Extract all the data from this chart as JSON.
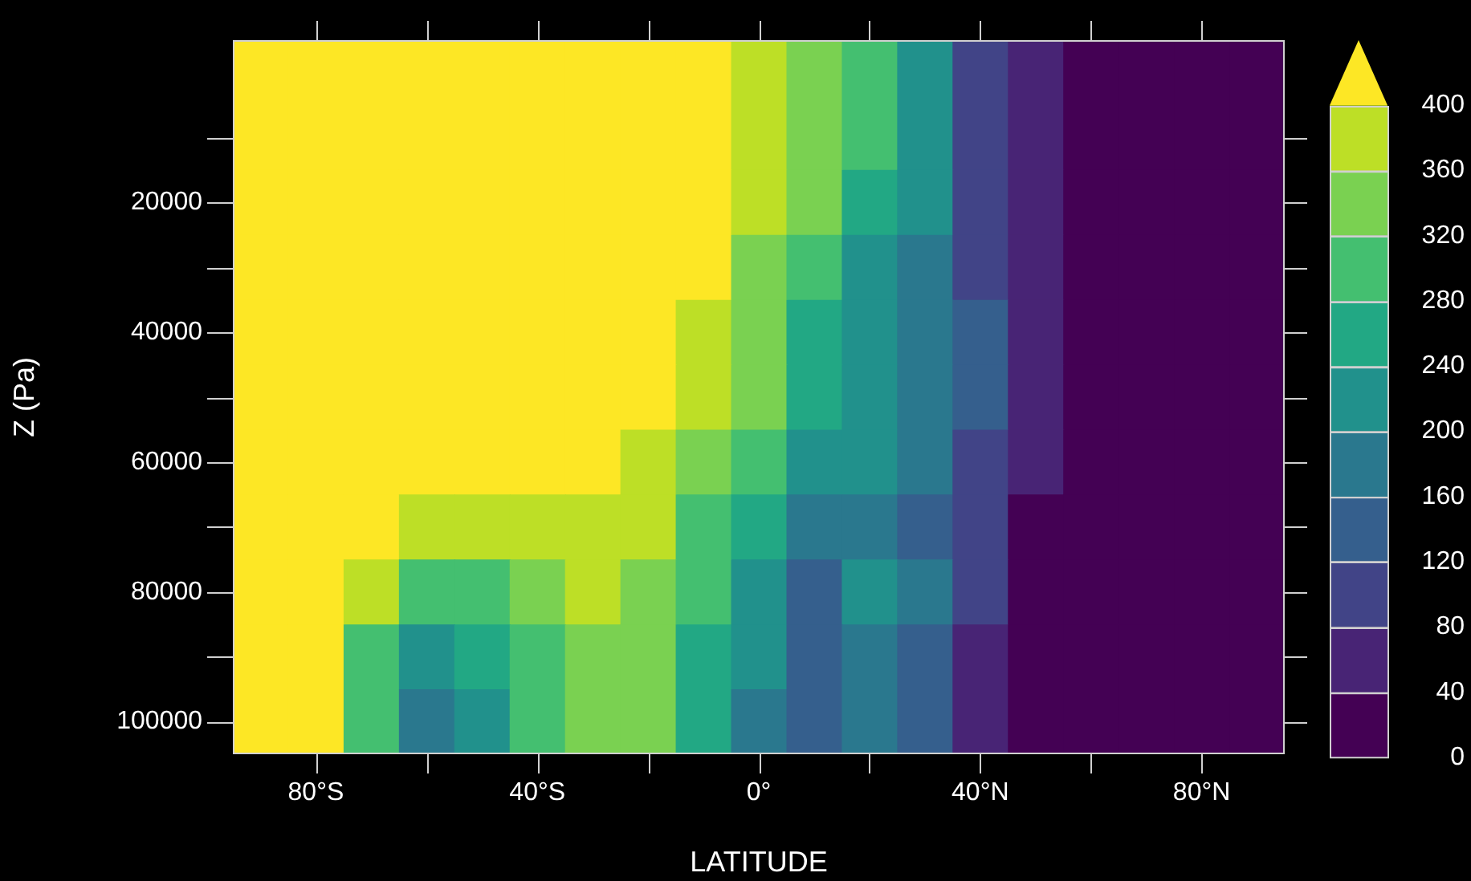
{
  "chart_data": {
    "type": "heatmap",
    "xlabel": "LATITUDE",
    "ylabel": "Z (Pa)",
    "categories": [
      null,
      "80°S",
      null,
      null,
      null,
      "40°S",
      null,
      null,
      null,
      "0°",
      null,
      null,
      null,
      "40°N",
      null,
      null,
      null,
      "80°N",
      null
    ],
    "y_categories": [
      null,
      null,
      "20000",
      null,
      "40000",
      null,
      "60000",
      null,
      "80000",
      null,
      "100000"
    ],
    "clim": [
      0,
      440
    ],
    "cticks": [
      0,
      40,
      80,
      120,
      160,
      200,
      240,
      280,
      320,
      360,
      400
    ],
    "colors": [
      "#440154",
      "#482475",
      "#414487",
      "#355f8d",
      "#2a788e",
      "#21918c",
      "#22a884",
      "#44bf70",
      "#7ad151",
      "#bddf26",
      "#fde725"
    ],
    "cells": [
      [
        420,
        420,
        420,
        420,
        420,
        420,
        420,
        420,
        420,
        380,
        340,
        300,
        220,
        100,
        60,
        20,
        20,
        20,
        20
      ],
      [
        420,
        420,
        420,
        420,
        420,
        420,
        420,
        420,
        420,
        380,
        340,
        300,
        220,
        100,
        60,
        20,
        20,
        20,
        20
      ],
      [
        420,
        420,
        420,
        420,
        420,
        420,
        420,
        420,
        420,
        380,
        340,
        260,
        220,
        100,
        60,
        20,
        20,
        20,
        20
      ],
      [
        420,
        420,
        420,
        420,
        420,
        420,
        420,
        420,
        420,
        340,
        300,
        220,
        180,
        100,
        60,
        20,
        20,
        20,
        20
      ],
      [
        420,
        420,
        420,
        420,
        420,
        420,
        420,
        420,
        380,
        340,
        260,
        220,
        180,
        140,
        60,
        20,
        20,
        20,
        20
      ],
      [
        420,
        420,
        420,
        420,
        420,
        420,
        420,
        420,
        380,
        340,
        260,
        220,
        180,
        140,
        60,
        20,
        20,
        20,
        20
      ],
      [
        420,
        420,
        420,
        420,
        420,
        420,
        420,
        380,
        340,
        300,
        220,
        220,
        180,
        100,
        60,
        20,
        20,
        20,
        20
      ],
      [
        420,
        420,
        420,
        380,
        380,
        380,
        380,
        380,
        300,
        260,
        180,
        180,
        140,
        100,
        20,
        20,
        20,
        20,
        20
      ],
      [
        420,
        420,
        380,
        300,
        300,
        340,
        380,
        340,
        300,
        220,
        140,
        220,
        180,
        100,
        20,
        20,
        20,
        20,
        20
      ],
      [
        420,
        420,
        300,
        220,
        260,
        300,
        340,
        340,
        260,
        220,
        140,
        180,
        140,
        60,
        20,
        20,
        20,
        20,
        20
      ],
      [
        420,
        420,
        300,
        180,
        220,
        300,
        340,
        340,
        260,
        180,
        140,
        180,
        140,
        60,
        20,
        20,
        20,
        20,
        20
      ]
    ]
  }
}
